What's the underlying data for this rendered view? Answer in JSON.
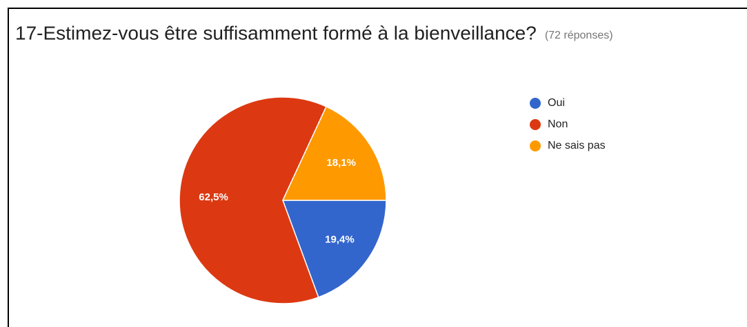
{
  "chart_data": {
    "type": "pie",
    "title": "17-Estimez-vous être suffisamment formé à la bienveillance?",
    "subtitle": "(72 réponses)",
    "categories": [
      "Oui",
      "Non",
      "Ne sais pas"
    ],
    "values": [
      19.4,
      62.5,
      18.1
    ],
    "value_labels": [
      "19,4%",
      "62,5%",
      "18,1%"
    ],
    "colors": [
      "#3366cc",
      "#dc3912",
      "#ff9900"
    ],
    "legend": "right"
  }
}
